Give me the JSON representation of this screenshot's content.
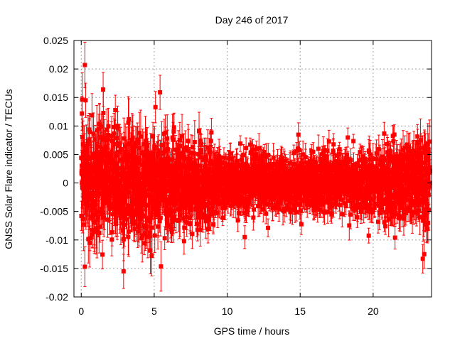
{
  "chart_data": {
    "type": "scatter",
    "title": "Day 246 of 2017",
    "xlabel": "GPS time / hours",
    "ylabel": "GNSS Solar Flare indicator / TECUs",
    "xlim": [
      -0.5,
      24
    ],
    "ylim": [
      -0.02,
      0.025
    ],
    "xticks": [
      0,
      5,
      10,
      15,
      20
    ],
    "xtick_labels": [
      "0",
      "5",
      "10",
      "15",
      "20"
    ],
    "yticks": [
      -0.02,
      -0.015,
      -0.01,
      -0.005,
      0,
      0.005,
      0.01,
      0.015,
      0.02,
      0.025
    ],
    "ytick_labels": [
      "-0.02",
      "-0.015",
      "-0.01",
      "-0.005",
      "0",
      "0.005",
      "0.01",
      "0.015",
      "0.02",
      "0.025"
    ],
    "grid": true,
    "marker_color": "#ff0000",
    "series": [
      {
        "marker": "square",
        "error_bars": true,
        "x_range": [
          0,
          23.9
        ],
        "spread_profile": [
          {
            "x": 0,
            "std": 0.0045
          },
          {
            "x": 4,
            "std": 0.0045
          },
          {
            "x": 6,
            "std": 0.0042
          },
          {
            "x": 9,
            "std": 0.0032
          },
          {
            "x": 10,
            "std": 0.0026
          },
          {
            "x": 15,
            "std": 0.0024
          },
          {
            "x": 19,
            "std": 0.0025
          },
          {
            "x": 21,
            "std": 0.003
          },
          {
            "x": 24,
            "std": 0.0038
          }
        ],
        "points": [
          {
            "x": 0.25,
            "y": 0.0207,
            "err": 0.004
          },
          {
            "x": 0.3,
            "y": 0.0145,
            "err": 0.003
          },
          {
            "x": 0.05,
            "y": 0.0122,
            "err": 0.003
          },
          {
            "x": 1.5,
            "y": 0.0164,
            "err": 0.003
          },
          {
            "x": 5.4,
            "y": 0.0159,
            "err": 0.003
          },
          {
            "x": 2.9,
            "y": -0.0155,
            "err": 0.003
          },
          {
            "x": 0.25,
            "y": -0.0147,
            "err": 0.0035
          },
          {
            "x": 23.4,
            "y": -0.0133,
            "err": 0.0025
          },
          {
            "x": 23.5,
            "y": -0.0125,
            "err": 0.0025
          },
          {
            "x": 21.5,
            "y": -0.0096,
            "err": 0.002
          },
          {
            "x": 11.2,
            "y": -0.0095,
            "err": 0.002
          }
        ]
      }
    ]
  }
}
